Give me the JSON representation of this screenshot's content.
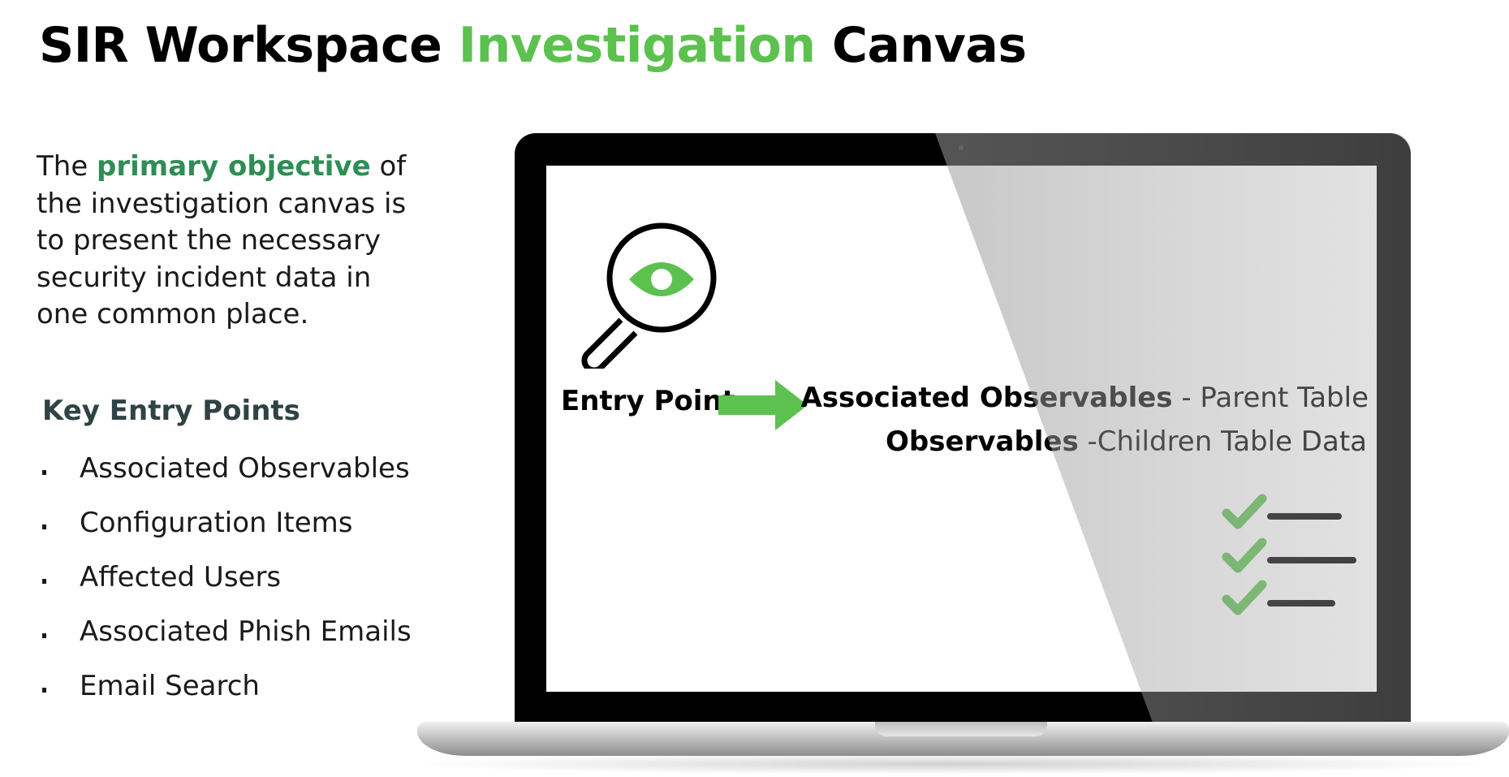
{
  "title": {
    "part1": "SIR Workspace ",
    "highlight": "Investigation",
    "part2": " Canvas"
  },
  "intro": {
    "prefix": "The ",
    "highlight": "primary objective",
    "suffix": " of the investigation canvas is to present the necessary security incident data in one common place."
  },
  "key_entry_points": {
    "heading": "Key Entry Points",
    "items": [
      "Associated Observables",
      "Configuration Items",
      "Affected Users",
      "Associated Phish Emails",
      "Email Search"
    ]
  },
  "screen": {
    "entry_point_label": "Entry Point",
    "associated_bold": "Associated Observables",
    "associated_rest": " - Parent Table",
    "observables_bold": "Observables",
    "observables_rest": " -Children Table Data"
  },
  "colors": {
    "accent_green": "#5cc14f",
    "dark_green": "#2f8e55",
    "heading_slate": "#2f4344"
  },
  "icons": [
    "magnifier-eye-icon",
    "arrow-right-icon",
    "checklist-icon"
  ]
}
